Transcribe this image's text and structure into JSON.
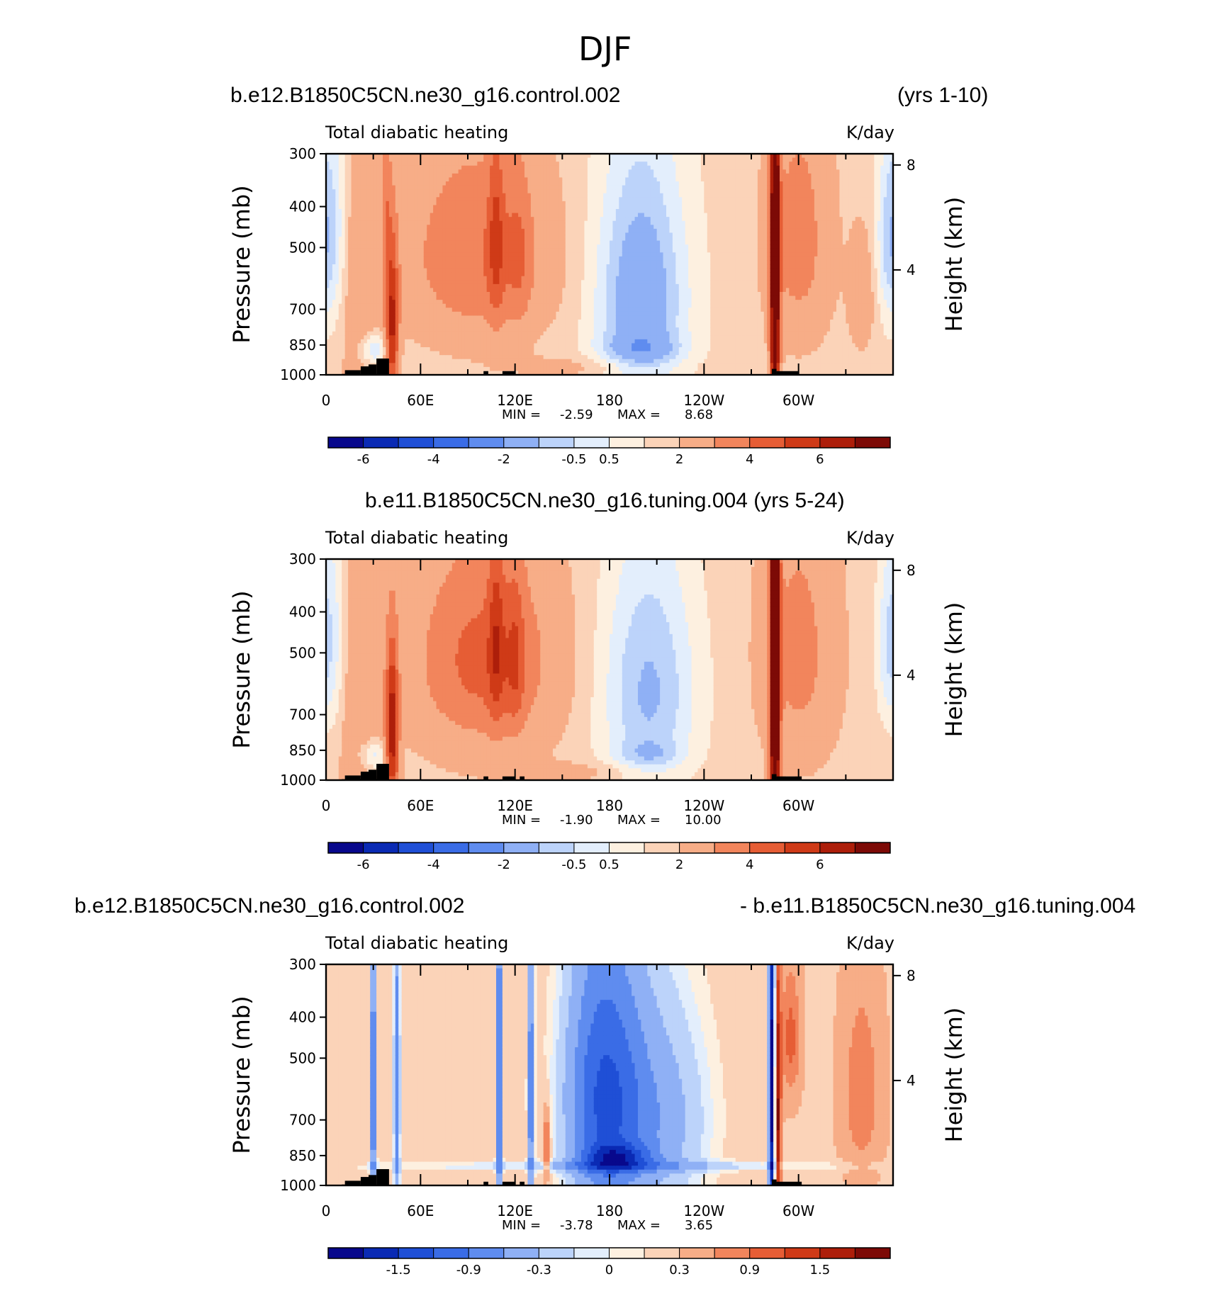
{
  "figure": {
    "title": "DJF",
    "panels": [
      {
        "header_left": "b.e12.B1850C5CN.ne30_g16.control.002",
        "header_right": "(yrs 1-10)"
      },
      {
        "header_center": "b.e11.B1850C5CN.ne30_g16.tuning.004 (yrs 5-24)"
      },
      {
        "header_left": "b.e12.B1850C5CN.ne30_g16.control.002",
        "header_right": "- b.e11.B1850C5CN.ne30_g16.tuning.004"
      }
    ]
  },
  "colors": {
    "scale": [
      "#08088c",
      "#0a2ab4",
      "#1f4fd6",
      "#3a6ce6",
      "#5f8cef",
      "#8fb0f5",
      "#bcd3fa",
      "#e3eefc",
      "#fdf0e0",
      "#fbd3b8",
      "#f7ad87",
      "#f2855c",
      "#e65d35",
      "#cf3a17",
      "#ad1e0a",
      "#7d0a06"
    ],
    "topography": "#000000"
  },
  "chart_data": [
    {
      "type": "contour",
      "subtitle_left": "Total diabatic heating",
      "subtitle_right": "K/day",
      "ylabel": "Pressure (mb)",
      "y2label": "Height (km)",
      "yticks": [
        "300",
        "400",
        "500",
        "700",
        "850",
        "1000"
      ],
      "y2ticks": [
        "8",
        "4"
      ],
      "xticks": [
        "0",
        "60E",
        "120E",
        "180",
        "120W",
        "60W"
      ],
      "stats_min_label": "MIN =",
      "stats_min": "-2.59",
      "stats_max_label": "MAX =",
      "stats_max": "8.68",
      "colorbar_labels": [
        "-6",
        "-4",
        "-2",
        "-0.5",
        "0.5",
        "2",
        "4",
        "6"
      ],
      "field": {
        "base": 0.7,
        "features": [
          {
            "lon": 5,
            "p": 460,
            "dlon": 10,
            "dp": 300,
            "amp": -1.2
          },
          {
            "lon": 22,
            "p": 640,
            "dlon": 14,
            "dp": 520,
            "amp": 1.0
          },
          {
            "lon": 42,
            "p": 780,
            "dlon": 4,
            "dp": 320,
            "amp": 4.5
          },
          {
            "lon": 38,
            "p": 400,
            "dlon": 3,
            "dp": 200,
            "amp": 1.3
          },
          {
            "lon": 30,
            "p": 870,
            "dlon": 10,
            "dp": 80,
            "amp": -1.6
          },
          {
            "lon": 95,
            "p": 520,
            "dlon": 45,
            "dp": 280,
            "amp": 2.2
          },
          {
            "lon": 108,
            "p": 470,
            "dlon": 5,
            "dp": 260,
            "amp": 2.0
          },
          {
            "lon": 122,
            "p": 520,
            "dlon": 8,
            "dp": 230,
            "amp": 1.2
          },
          {
            "lon": 200,
            "p": 660,
            "dlon": 28,
            "dp": 420,
            "amp": -2.4
          },
          {
            "lon": 200,
            "p": 870,
            "dlon": 25,
            "dp": 70,
            "amp": -1.0
          },
          {
            "lon": 285,
            "p": 600,
            "dlon": 3,
            "dp": 900,
            "amp": 7.5
          },
          {
            "lon": 300,
            "p": 480,
            "dlon": 20,
            "dp": 320,
            "amp": 1.8
          },
          {
            "lon": 340,
            "p": 650,
            "dlon": 8,
            "dp": 200,
            "amp": 1.0
          },
          {
            "lon": 357,
            "p": 480,
            "dlon": 8,
            "dp": 220,
            "amp": -1.1
          },
          {
            "lon": 170,
            "p": 960,
            "dlon": 50,
            "dp": 60,
            "amp": 0.6
          }
        ]
      },
      "topography": [
        [
          10,
          12,
          995
        ],
        [
          12,
          22,
          975
        ],
        [
          22,
          27,
          955
        ],
        [
          27,
          32,
          945
        ],
        [
          32,
          40,
          915
        ],
        [
          100,
          103,
          980
        ],
        [
          112,
          120,
          980
        ],
        [
          283,
          286,
          968
        ],
        [
          286,
          300,
          980
        ]
      ]
    },
    {
      "type": "contour",
      "subtitle_left": "Total diabatic heating",
      "subtitle_right": "K/day",
      "ylabel": "Pressure (mb)",
      "y2label": "Height (km)",
      "yticks": [
        "300",
        "400",
        "500",
        "700",
        "850",
        "1000"
      ],
      "y2ticks": [
        "8",
        "4"
      ],
      "xticks": [
        "0",
        "60E",
        "120E",
        "180",
        "120W",
        "60W"
      ],
      "stats_min_label": "MIN =",
      "stats_min": "-1.90",
      "stats_max_label": "MAX =",
      "stats_max": "10.00",
      "colorbar_labels": [
        "-6",
        "-4",
        "-2",
        "-0.5",
        "0.5",
        "2",
        "4",
        "6"
      ],
      "field": {
        "base": 0.8,
        "features": [
          {
            "lon": 5,
            "p": 460,
            "dlon": 10,
            "dp": 300,
            "amp": -1.0
          },
          {
            "lon": 22,
            "p": 640,
            "dlon": 14,
            "dp": 520,
            "amp": 1.0
          },
          {
            "lon": 42,
            "p": 780,
            "dlon": 4,
            "dp": 320,
            "amp": 5.0
          },
          {
            "lon": 30,
            "p": 870,
            "dlon": 10,
            "dp": 80,
            "amp": -1.4
          },
          {
            "lon": 100,
            "p": 520,
            "dlon": 42,
            "dp": 280,
            "amp": 2.6
          },
          {
            "lon": 108,
            "p": 470,
            "dlon": 5,
            "dp": 260,
            "amp": 2.0
          },
          {
            "lon": 120,
            "p": 520,
            "dlon": 6,
            "dp": 230,
            "amp": 1.6
          },
          {
            "lon": 205,
            "p": 620,
            "dlon": 30,
            "dp": 420,
            "amp": -1.9
          },
          {
            "lon": 205,
            "p": 870,
            "dlon": 20,
            "dp": 60,
            "amp": -0.7
          },
          {
            "lon": 285,
            "p": 600,
            "dlon": 3,
            "dp": 900,
            "amp": 8.5
          },
          {
            "lon": 300,
            "p": 500,
            "dlon": 22,
            "dp": 340,
            "amp": 1.6
          },
          {
            "lon": 357,
            "p": 480,
            "dlon": 8,
            "dp": 220,
            "amp": -1.0
          },
          {
            "lon": 170,
            "p": 960,
            "dlon": 50,
            "dp": 60,
            "amp": 0.5
          }
        ]
      },
      "topography": [
        [
          10,
          12,
          995
        ],
        [
          12,
          22,
          975
        ],
        [
          22,
          27,
          955
        ],
        [
          27,
          32,
          945
        ],
        [
          32,
          40,
          915
        ],
        [
          100,
          103,
          980
        ],
        [
          112,
          120,
          980
        ],
        [
          123,
          126,
          980
        ],
        [
          283,
          286,
          968
        ],
        [
          286,
          302,
          980
        ]
      ]
    },
    {
      "type": "contour",
      "subtitle_left": "Total diabatic heating",
      "subtitle_right": "K/day",
      "ylabel": "Pressure (mb)",
      "y2label": "Height (km)",
      "yticks": [
        "300",
        "400",
        "500",
        "700",
        "850",
        "1000"
      ],
      "y2ticks": [
        "8",
        "4"
      ],
      "xticks": [
        "0",
        "60E",
        "120E",
        "180",
        "120W",
        "60W"
      ],
      "stats_min_label": "MIN =",
      "stats_min": "-3.78",
      "stats_max_label": "MAX =",
      "stats_max": "3.65",
      "colorbar_labels": [
        "-1.5",
        "-0.9",
        "-0.3",
        "0",
        "0.3",
        "0.9",
        "1.5"
      ],
      "field": {
        "base": 0.25,
        "features": [
          {
            "lon": 30,
            "p": 600,
            "dlon": 2,
            "dp": 700,
            "amp": -1.2
          },
          {
            "lon": 45,
            "p": 600,
            "dlon": 2,
            "dp": 700,
            "amp": -1.0
          },
          {
            "lon": 110,
            "p": 600,
            "dlon": 2,
            "dp": 700,
            "amp": -1.3
          },
          {
            "lon": 130,
            "p": 600,
            "dlon": 2,
            "dp": 700,
            "amp": -1.1
          },
          {
            "lon": 140,
            "p": 800,
            "dlon": 2,
            "dp": 150,
            "amp": 1.0
          },
          {
            "lon": 175,
            "p": 620,
            "dlon": 25,
            "dp": 500,
            "amp": -1.3
          },
          {
            "lon": 210,
            "p": 700,
            "dlon": 35,
            "dp": 450,
            "amp": -0.7
          },
          {
            "lon": 185,
            "p": 860,
            "dlon": 20,
            "dp": 60,
            "amp": -0.9
          },
          {
            "lon": 283,
            "p": 600,
            "dlon": 2,
            "dp": 800,
            "amp": -2.2
          },
          {
            "lon": 287,
            "p": 700,
            "dlon": 2,
            "dp": 500,
            "amp": 1.6
          },
          {
            "lon": 295,
            "p": 450,
            "dlon": 6,
            "dp": 150,
            "amp": 0.8
          },
          {
            "lon": 340,
            "p": 600,
            "dlon": 12,
            "dp": 300,
            "amp": 0.6
          },
          {
            "lon": 180,
            "p": 900,
            "dlon": 170,
            "dp": 25,
            "amp": -0.4
          }
        ]
      },
      "topography": [
        [
          10,
          12,
          995
        ],
        [
          12,
          22,
          975
        ],
        [
          22,
          27,
          955
        ],
        [
          27,
          32,
          945
        ],
        [
          32,
          40,
          915
        ],
        [
          100,
          103,
          980
        ],
        [
          112,
          120,
          980
        ],
        [
          123,
          126,
          980
        ],
        [
          283,
          286,
          968
        ],
        [
          286,
          302,
          980
        ]
      ]
    }
  ]
}
